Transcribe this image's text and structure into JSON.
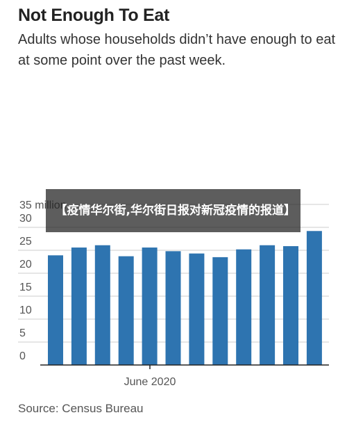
{
  "header": {
    "title": "Not Enough To Eat",
    "subtitle": "Adults whose households didn’t have enough to eat at some point over the past week."
  },
  "source": "Source: Census Bureau",
  "overlay": {
    "text": "【疫情华尔街,华尔街日报对新冠疫情的报道】"
  },
  "colors": {
    "bar": "#2e74b0",
    "grid": "#cccccc",
    "axis": "#222222",
    "overlay_bg": "#1e1e1e"
  },
  "chart_data": {
    "type": "bar",
    "title": "Not Enough To Eat",
    "subtitle": "Adults whose households didn’t have enough to eat at some point over the past week.",
    "unit_label": "35 million",
    "x_tick_label": "June 2020",
    "ylim": [
      0,
      35
    ],
    "y_ticks": [
      0,
      5,
      10,
      15,
      20,
      25,
      30
    ],
    "grid": true,
    "values": [
      23.9,
      25.6,
      26.1,
      23.7,
      25.6,
      24.8,
      24.3,
      23.5,
      25.2,
      26.1,
      25.9,
      29.2
    ]
  }
}
